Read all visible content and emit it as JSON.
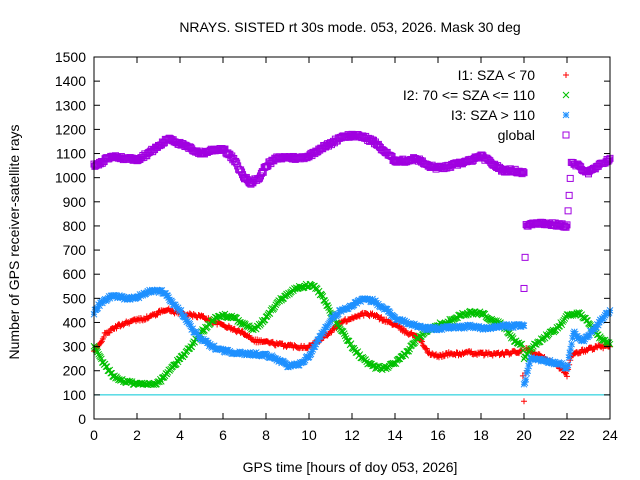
{
  "chart_data": {
    "type": "scatter",
    "title": "NRAYS. SISTED rt 30s mode. 053, 2026. Mask 30 deg",
    "xlabel": "GPS time [hours of doy 053, 2026]",
    "ylabel": "Number of GPS receiver-satellite rays",
    "xlim": [
      0,
      24
    ],
    "ylim": [
      0,
      1500
    ],
    "xticks": [
      0,
      2,
      4,
      6,
      8,
      10,
      12,
      14,
      16,
      18,
      20,
      22,
      24
    ],
    "yticks": [
      0,
      100,
      200,
      300,
      400,
      500,
      600,
      700,
      800,
      900,
      1000,
      1100,
      1200,
      1300,
      1400,
      1500
    ],
    "grid": false,
    "legend_position": "top-right",
    "reference_line": {
      "y": 100,
      "color": "#00c8d8"
    },
    "series": [
      {
        "name": "I1: SZA < 70",
        "color": "#ff0000",
        "marker": "+",
        "points": [
          [
            0,
            280
          ],
          [
            0.2,
            300
          ],
          [
            0.5,
            350
          ],
          [
            1,
            380
          ],
          [
            1.5,
            400
          ],
          [
            2,
            410
          ],
          [
            2.5,
            420
          ],
          [
            3,
            440
          ],
          [
            3.3,
            455
          ],
          [
            3.7,
            445
          ],
          [
            4,
            440
          ],
          [
            4.5,
            430
          ],
          [
            5,
            425
          ],
          [
            5.5,
            405
          ],
          [
            6,
            390
          ],
          [
            6.5,
            370
          ],
          [
            7,
            355
          ],
          [
            7.5,
            325
          ],
          [
            8,
            320
          ],
          [
            8.5,
            310
          ],
          [
            9,
            305
          ],
          [
            9.5,
            300
          ],
          [
            10,
            300
          ],
          [
            10.5,
            330
          ],
          [
            11,
            360
          ],
          [
            11.5,
            400
          ],
          [
            12,
            420
          ],
          [
            12.5,
            435
          ],
          [
            13,
            430
          ],
          [
            13.5,
            410
          ],
          [
            14,
            390
          ],
          [
            14.5,
            360
          ],
          [
            15,
            345
          ],
          [
            15.3,
            310
          ],
          [
            15.6,
            270
          ],
          [
            16,
            260
          ],
          [
            16.5,
            270
          ],
          [
            17,
            270
          ],
          [
            17.5,
            275
          ],
          [
            18,
            270
          ],
          [
            18.5,
            270
          ],
          [
            19,
            270
          ],
          [
            19.5,
            275
          ],
          [
            19.9,
            280
          ],
          [
            20,
            80
          ],
          [
            20.1,
            290
          ],
          [
            20.5,
            270
          ],
          [
            21,
            250
          ],
          [
            21.5,
            230
          ],
          [
            22,
            180
          ],
          [
            22.2,
            260
          ],
          [
            22.5,
            275
          ],
          [
            23,
            290
          ],
          [
            23.5,
            300
          ],
          [
            24,
            300
          ]
        ]
      },
      {
        "name": "I2: 70 <= SZA <= 110",
        "color": "#00c000",
        "marker": "x",
        "points": [
          [
            0,
            300
          ],
          [
            0.3,
            250
          ],
          [
            0.6,
            210
          ],
          [
            1,
            170
          ],
          [
            1.5,
            155
          ],
          [
            2,
            145
          ],
          [
            2.5,
            145
          ],
          [
            3,
            150
          ],
          [
            3.3,
            180
          ],
          [
            3.7,
            220
          ],
          [
            4,
            250
          ],
          [
            4.5,
            300
          ],
          [
            5,
            360
          ],
          [
            5.5,
            410
          ],
          [
            6,
            430
          ],
          [
            6.5,
            420
          ],
          [
            7,
            390
          ],
          [
            7.5,
            370
          ],
          [
            8,
            420
          ],
          [
            8.5,
            480
          ],
          [
            9,
            520
          ],
          [
            9.5,
            545
          ],
          [
            10,
            555
          ],
          [
            10.3,
            545
          ],
          [
            10.6,
            510
          ],
          [
            11,
            440
          ],
          [
            11.5,
            370
          ],
          [
            12,
            300
          ],
          [
            12.5,
            250
          ],
          [
            13,
            215
          ],
          [
            13.5,
            210
          ],
          [
            14,
            230
          ],
          [
            14.5,
            270
          ],
          [
            15,
            330
          ],
          [
            15.5,
            370
          ],
          [
            16,
            390
          ],
          [
            16.5,
            405
          ],
          [
            17,
            430
          ],
          [
            17.5,
            440
          ],
          [
            18,
            440
          ],
          [
            18.5,
            410
          ],
          [
            19,
            390
          ],
          [
            19.5,
            330
          ],
          [
            19.9,
            310
          ],
          [
            20,
            250
          ],
          [
            20.3,
            290
          ],
          [
            20.8,
            330
          ],
          [
            21.3,
            360
          ],
          [
            21.8,
            400
          ],
          [
            22,
            430
          ],
          [
            22.5,
            440
          ],
          [
            23,
            400
          ],
          [
            23.5,
            340
          ],
          [
            24,
            310
          ]
        ]
      },
      {
        "name": "I3: SZA > 110",
        "color": "#1e90ff",
        "marker": "*",
        "points": [
          [
            0,
            440
          ],
          [
            0.3,
            480
          ],
          [
            0.7,
            505
          ],
          [
            1,
            510
          ],
          [
            1.5,
            500
          ],
          [
            2,
            505
          ],
          [
            2.5,
            525
          ],
          [
            2.8,
            535
          ],
          [
            3.2,
            525
          ],
          [
            3.6,
            490
          ],
          [
            4,
            450
          ],
          [
            4.5,
            380
          ],
          [
            5,
            330
          ],
          [
            5.5,
            300
          ],
          [
            6,
            285
          ],
          [
            6.5,
            275
          ],
          [
            7,
            270
          ],
          [
            7.5,
            270
          ],
          [
            8,
            265
          ],
          [
            8.5,
            250
          ],
          [
            9,
            220
          ],
          [
            9.5,
            225
          ],
          [
            10,
            260
          ],
          [
            10.5,
            340
          ],
          [
            11,
            410
          ],
          [
            11.5,
            450
          ],
          [
            12,
            470
          ],
          [
            12.5,
            495
          ],
          [
            13,
            490
          ],
          [
            13.5,
            460
          ],
          [
            14,
            420
          ],
          [
            14.5,
            400
          ],
          [
            15,
            385
          ],
          [
            15.5,
            375
          ],
          [
            16,
            375
          ],
          [
            16.5,
            380
          ],
          [
            17,
            380
          ],
          [
            17.5,
            385
          ],
          [
            18,
            375
          ],
          [
            18.5,
            380
          ],
          [
            19,
            385
          ],
          [
            19.5,
            385
          ],
          [
            20,
            390
          ],
          [
            20,
            140
          ],
          [
            20.3,
            250
          ],
          [
            20.8,
            245
          ],
          [
            21.3,
            235
          ],
          [
            21.8,
            225
          ],
          [
            22,
            205
          ],
          [
            22.3,
            360
          ],
          [
            22.7,
            320
          ],
          [
            23,
            350
          ],
          [
            23.5,
            400
          ],
          [
            24,
            450
          ]
        ]
      },
      {
        "name": "global",
        "color": "#a000e0",
        "marker": "square",
        "points": [
          [
            0,
            1050
          ],
          [
            0.3,
            1060
          ],
          [
            0.6,
            1080
          ],
          [
            1,
            1085
          ],
          [
            1.5,
            1080
          ],
          [
            2,
            1075
          ],
          [
            2.5,
            1100
          ],
          [
            3,
            1130
          ],
          [
            3.5,
            1165
          ],
          [
            4,
            1140
          ],
          [
            4.5,
            1120
          ],
          [
            5,
            1100
          ],
          [
            5.5,
            1115
          ],
          [
            6,
            1120
          ],
          [
            6.5,
            1075
          ],
          [
            7,
            1000
          ],
          [
            7.3,
            980
          ],
          [
            7.7,
            1000
          ],
          [
            8,
            1050
          ],
          [
            8.5,
            1080
          ],
          [
            9,
            1085
          ],
          [
            9.5,
            1080
          ],
          [
            10,
            1090
          ],
          [
            10.5,
            1120
          ],
          [
            11,
            1140
          ],
          [
            11.5,
            1170
          ],
          [
            12,
            1175
          ],
          [
            12.5,
            1170
          ],
          [
            13,
            1150
          ],
          [
            13.5,
            1110
          ],
          [
            14,
            1070
          ],
          [
            14.5,
            1070
          ],
          [
            15,
            1080
          ],
          [
            15.5,
            1050
          ],
          [
            16,
            1040
          ],
          [
            16.5,
            1045
          ],
          [
            17,
            1060
          ],
          [
            17.5,
            1070
          ],
          [
            18,
            1090
          ],
          [
            18.5,
            1060
          ],
          [
            19,
            1030
          ],
          [
            19.5,
            1030
          ],
          [
            20,
            1020
          ],
          [
            20,
            540
          ],
          [
            20.1,
            800
          ],
          [
            20.5,
            815
          ],
          [
            21,
            810
          ],
          [
            21.5,
            805
          ],
          [
            22,
            800
          ],
          [
            22.2,
            1060
          ],
          [
            22.5,
            1050
          ],
          [
            23,
            1020
          ],
          [
            23.5,
            1050
          ],
          [
            24,
            1080
          ]
        ]
      }
    ]
  }
}
